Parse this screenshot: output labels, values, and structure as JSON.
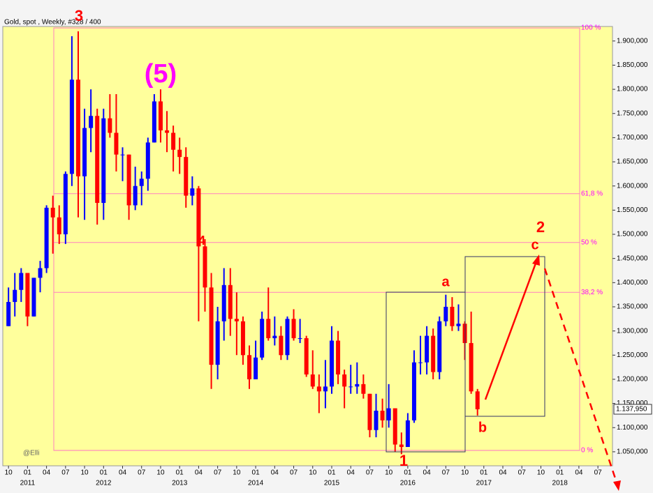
{
  "chart_data": {
    "type": "ohlc",
    "title": "Gold, spot , Weekly, #328 / 400",
    "x": [
      -3,
      -2,
      -1,
      0,
      1,
      2,
      3,
      4,
      5,
      6,
      7,
      8,
      9,
      10,
      11,
      12,
      13,
      14,
      15,
      16,
      17,
      18,
      19,
      20,
      21,
      22,
      23,
      24,
      25,
      26,
      27,
      28,
      29,
      30,
      31,
      32,
      33,
      34,
      35,
      36,
      37,
      38,
      39,
      40,
      41,
      42,
      43,
      44,
      45,
      46,
      47,
      48,
      49,
      50,
      51,
      52,
      53,
      54,
      55,
      56,
      57,
      58,
      59,
      60,
      61,
      62,
      63,
      64,
      65,
      66,
      67,
      68,
      69,
      70,
      71
    ],
    "open": [
      1310,
      1360,
      1385,
      1420,
      1330,
      1410,
      1430,
      1555,
      1535,
      1500,
      1625,
      1820,
      1620,
      1720,
      1745,
      1565,
      1740,
      1710,
      1665,
      1665,
      1560,
      1600,
      1615,
      1690,
      1775,
      1715,
      1710,
      1675,
      1660,
      1580,
      1595,
      1475,
      1390,
      1230,
      1320,
      1395,
      1325,
      1320,
      1250,
      1200,
      1245,
      1325,
      1285,
      1290,
      1250,
      1325,
      1285,
      1285,
      1210,
      1185,
      1175,
      1185,
      1280,
      1210,
      1185,
      1185,
      1190,
      1170,
      1095,
      1135,
      1115,
      1140,
      1065,
      1060,
      1115,
      1235,
      1235,
      1290,
      1215,
      1320,
      1350,
      1310,
      1315,
      1275,
      1175
    ],
    "high": [
      1390,
      1420,
      1430,
      1420,
      1410,
      1445,
      1560,
      1580,
      1560,
      1630,
      1910,
      1920,
      1760,
      1800,
      1760,
      1760,
      1790,
      1790,
      1680,
      1665,
      1640,
      1630,
      1700,
      1790,
      1800,
      1755,
      1725,
      1700,
      1680,
      1620,
      1600,
      1490,
      1420,
      1350,
      1430,
      1430,
      1380,
      1330,
      1270,
      1280,
      1340,
      1390,
      1330,
      1310,
      1330,
      1345,
      1325,
      1290,
      1260,
      1210,
      1240,
      1310,
      1300,
      1220,
      1230,
      1235,
      1210,
      1170,
      1170,
      1160,
      1190,
      1140,
      1090,
      1130,
      1260,
      1290,
      1310,
      1305,
      1330,
      1375,
      1370,
      1355,
      1320,
      1340,
      1180
    ],
    "low": [
      1310,
      1330,
      1360,
      1310,
      1330,
      1380,
      1420,
      1460,
      1480,
      1480,
      1600,
      1535,
      1530,
      1670,
      1520,
      1530,
      1700,
      1630,
      1610,
      1530,
      1550,
      1560,
      1590,
      1690,
      1690,
      1670,
      1630,
      1625,
      1555,
      1560,
      1320,
      1340,
      1180,
      1200,
      1280,
      1290,
      1250,
      1230,
      1180,
      1200,
      1240,
      1280,
      1270,
      1240,
      1240,
      1280,
      1275,
      1205,
      1180,
      1130,
      1140,
      1170,
      1190,
      1140,
      1170,
      1170,
      1160,
      1080,
      1080,
      1100,
      1100,
      1050,
      1045,
      1060,
      1110,
      1210,
      1210,
      1200,
      1200,
      1310,
      1300,
      1300,
      1240,
      1170,
      1125
    ],
    "close": [
      1360,
      1385,
      1420,
      1330,
      1410,
      1430,
      1555,
      1535,
      1500,
      1625,
      1820,
      1620,
      1720,
      1745,
      1565,
      1740,
      1710,
      1665,
      1665,
      1560,
      1600,
      1615,
      1690,
      1775,
      1715,
      1710,
      1675,
      1660,
      1580,
      1595,
      1475,
      1390,
      1230,
      1320,
      1395,
      1325,
      1320,
      1250,
      1200,
      1245,
      1325,
      1285,
      1290,
      1250,
      1325,
      1285,
      1285,
      1210,
      1185,
      1175,
      1185,
      1280,
      1210,
      1185,
      1185,
      1190,
      1170,
      1095,
      1135,
      1115,
      1140,
      1065,
      1060,
      1115,
      1235,
      1235,
      1290,
      1215,
      1320,
      1350,
      1310,
      1315,
      1275,
      1175,
      1138
    ],
    "up_color": "#0000ff",
    "down_color": "#ff0000",
    "xlim": [
      -3.9,
      92.3
    ],
    "xticks": [
      {
        "value": -3,
        "label": "10"
      },
      {
        "value": 0,
        "label": "01"
      },
      {
        "value": 3,
        "label": "04"
      },
      {
        "value": 6,
        "label": "07"
      },
      {
        "value": 9,
        "label": "10"
      },
      {
        "value": 12,
        "label": "01"
      },
      {
        "value": 15,
        "label": "04"
      },
      {
        "value": 18,
        "label": "07"
      },
      {
        "value": 21,
        "label": "10"
      },
      {
        "value": 24,
        "label": "01"
      },
      {
        "value": 27,
        "label": "04"
      },
      {
        "value": 30,
        "label": "07"
      },
      {
        "value": 33,
        "label": "10"
      },
      {
        "value": 36,
        "label": "01"
      },
      {
        "value": 39,
        "label": "04"
      },
      {
        "value": 42,
        "label": "07"
      },
      {
        "value": 45,
        "label": "10"
      },
      {
        "value": 48,
        "label": "01"
      },
      {
        "value": 51,
        "label": "04"
      },
      {
        "value": 54,
        "label": "07"
      },
      {
        "value": 57,
        "label": "10"
      },
      {
        "value": 60,
        "label": "01"
      },
      {
        "value": 63,
        "label": "04"
      },
      {
        "value": 66,
        "label": "07"
      },
      {
        "value": 69,
        "label": "10"
      },
      {
        "value": 72,
        "label": "01"
      },
      {
        "value": 75,
        "label": "04"
      },
      {
        "value": 78,
        "label": "07"
      },
      {
        "value": 81,
        "label": "10"
      },
      {
        "value": 84,
        "label": "01"
      },
      {
        "value": 87,
        "label": "04"
      },
      {
        "value": 90,
        "label": "07"
      }
    ],
    "year_ticks": [
      {
        "value": 0,
        "label": "2011"
      },
      {
        "value": 12,
        "label": "2012"
      },
      {
        "value": 24,
        "label": "2013"
      },
      {
        "value": 36,
        "label": "2014"
      },
      {
        "value": 48,
        "label": "2015"
      },
      {
        "value": 60,
        "label": "2016"
      },
      {
        "value": 72,
        "label": "2017"
      },
      {
        "value": 84,
        "label": "2018"
      }
    ],
    "ylim": [
      1021,
      1930
    ],
    "yticks": [
      {
        "value": 1050,
        "label": "1.050,000"
      },
      {
        "value": 1100,
        "label": "1.100,000"
      },
      {
        "value": 1150,
        "label": "1.150,000"
      },
      {
        "value": 1200,
        "label": "1.200,000"
      },
      {
        "value": 1250,
        "label": "1.250,000"
      },
      {
        "value": 1300,
        "label": "1.300,000"
      },
      {
        "value": 1350,
        "label": "1.350,000"
      },
      {
        "value": 1400,
        "label": "1.400,000"
      },
      {
        "value": 1450,
        "label": "1.450,000"
      },
      {
        "value": 1500,
        "label": "1.500,000"
      },
      {
        "value": 1550,
        "label": "1.550,000"
      },
      {
        "value": 1600,
        "label": "1.600,000"
      },
      {
        "value": 1650,
        "label": "1.650,000"
      },
      {
        "value": 1700,
        "label": "1.700,000"
      },
      {
        "value": 1750,
        "label": "1.750,000"
      },
      {
        "value": 1800,
        "label": "1.800,000"
      },
      {
        "value": 1850,
        "label": "1.850,000"
      },
      {
        "value": 1900,
        "label": "1.900,000"
      }
    ],
    "last_price": {
      "value": 1137.95,
      "label": "1.137,950"
    },
    "fib_color": "#ff00ff",
    "fib_levels": [
      {
        "value": 1927,
        "label": "100 %"
      },
      {
        "value": 1584,
        "label": "61,8 %"
      },
      {
        "value": 1483,
        "label": "50 %"
      },
      {
        "value": 1380,
        "label": "38,2 %"
      },
      {
        "value": 1053,
        "label": "0 %"
      }
    ],
    "annotations": [
      "3",
      "(5)",
      "4",
      "1",
      "a",
      "b",
      "c",
      "2",
      "@Elli"
    ]
  }
}
